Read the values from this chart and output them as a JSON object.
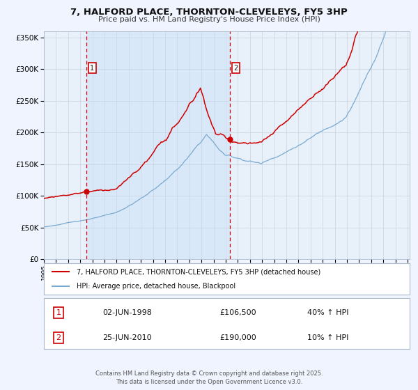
{
  "title_line1": "7, HALFORD PLACE, THORNTON-CLEVELEYS, FY5 3HP",
  "title_line2": "Price paid vs. HM Land Registry's House Price Index (HPI)",
  "bg_color": "#f0f4ff",
  "plot_bg_color": "#e8f0fa",
  "grid_color": "#c8d4e0",
  "red_line_color": "#cc0000",
  "blue_line_color": "#7aaad0",
  "vline_color": "#dd0000",
  "legend_red": "7, HALFORD PLACE, THORNTON-CLEVELEYS, FY5 3HP (detached house)",
  "legend_blue": "HPI: Average price, detached house, Blackpool",
  "annotation1_date": "02-JUN-1998",
  "annotation1_price": "£106,500",
  "annotation1_hpi": "40% ↑ HPI",
  "annotation2_date": "25-JUN-2010",
  "annotation2_price": "£190,000",
  "annotation2_hpi": "10% ↑ HPI",
  "footer": "Contains HM Land Registry data © Crown copyright and database right 2025.\nThis data is licensed under the Open Government Licence v3.0.",
  "ylim_min": 0,
  "ylim_max": 360000,
  "ytick_step": 50000,
  "sale1_idx": 42,
  "sale1_value": 106500,
  "sale2_idx": 184,
  "sale2_value": 190000
}
